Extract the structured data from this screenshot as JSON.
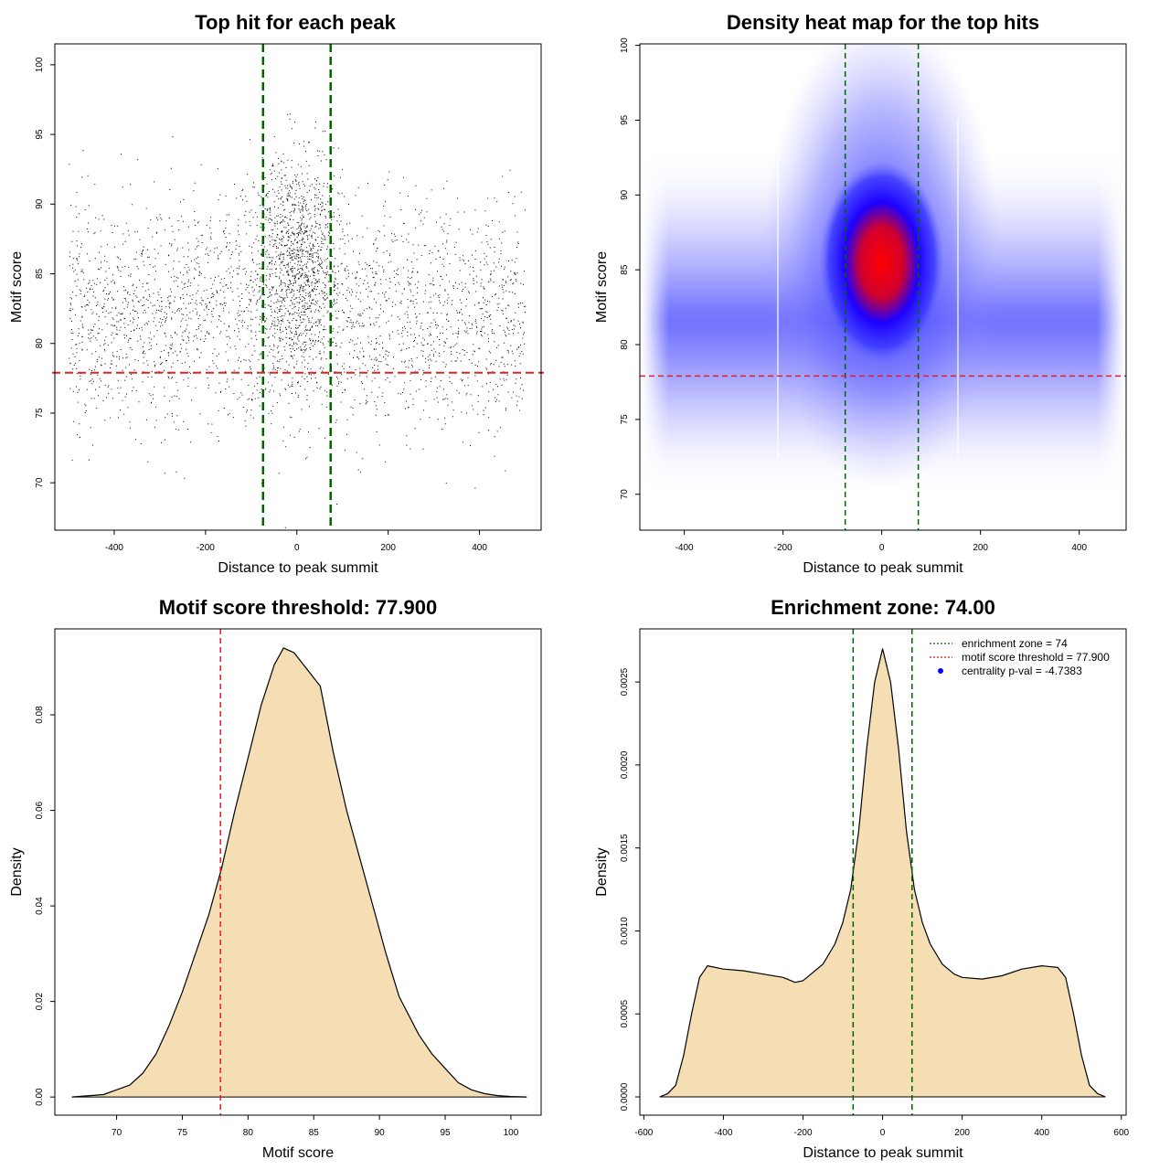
{
  "chart_data": [
    {
      "type": "scatter",
      "title": "Top hit for each peak",
      "xlabel": "Distance to peak summit",
      "ylabel": "Motif score",
      "xlim": [
        -530,
        535
      ],
      "ylim": [
        66.6,
        101.5
      ],
      "xticks": [
        -400,
        -200,
        0,
        200,
        400
      ],
      "yticks": [
        70,
        75,
        80,
        85,
        90,
        95,
        100
      ],
      "grid": false,
      "reference_lines": {
        "motif_score_threshold": 77.9,
        "enrichment_zone": [
          -74,
          74
        ]
      },
      "points_summary": {
        "n_approx": 60000,
        "x_range": [
          -500,
          500
        ],
        "background_y_mean": 82,
        "background_y_sd": 4,
        "central_y_mean": 86,
        "central_y_sd": 4,
        "central_x_sd": 45,
        "central_fraction": 0.3
      }
    },
    {
      "type": "heatmap",
      "title": "Density heat map for the top hits",
      "xlabel": "Distance to peak summit",
      "ylabel": "Motif score",
      "xlim": [
        -490,
        495
      ],
      "ylim": [
        67.6,
        100.1
      ],
      "xticks": [
        -400,
        -200,
        0,
        200,
        400
      ],
      "yticks": [
        70,
        75,
        80,
        85,
        90,
        95,
        100
      ],
      "grid": false,
      "reference_lines": {
        "motif_score_threshold": 77.9,
        "enrichment_zone": [
          -74,
          74
        ]
      },
      "peak_density": {
        "x": 0,
        "y": 85.5
      },
      "colormap": [
        "#ffffff",
        "#0000ff",
        "#ff0000"
      ]
    },
    {
      "type": "area",
      "title": "Motif score threshold: 77.900",
      "xlabel": "Motif score",
      "ylabel": "Density",
      "xlim": [
        65.3,
        102.3
      ],
      "ylim": [
        -0.0038,
        0.098
      ],
      "xticks": [
        70,
        75,
        80,
        85,
        90,
        95,
        100
      ],
      "yticks": [
        0.0,
        0.02,
        0.04,
        0.06,
        0.08
      ],
      "ytick_labels": [
        "0.00",
        "0.02",
        "0.04",
        "0.06",
        "0.08"
      ],
      "grid": false,
      "reference_lines": {
        "motif_score_threshold": 77.9
      },
      "x": [
        66.6,
        69,
        71,
        72,
        73,
        74,
        75,
        76,
        77,
        78,
        79,
        80,
        81,
        82,
        82.7,
        83.5,
        84.5,
        85.5,
        86.5,
        87.5,
        88.5,
        89.5,
        90.5,
        91.5,
        93,
        94,
        95,
        96,
        97,
        98,
        99,
        100,
        101.2
      ],
      "y": [
        0.0,
        0.0005,
        0.0025,
        0.005,
        0.009,
        0.015,
        0.022,
        0.03,
        0.038,
        0.048,
        0.06,
        0.071,
        0.082,
        0.0905,
        0.094,
        0.093,
        0.0895,
        0.086,
        0.072,
        0.06,
        0.05,
        0.04,
        0.03,
        0.021,
        0.013,
        0.009,
        0.006,
        0.003,
        0.0015,
        0.0007,
        0.0003,
        0.0001,
        0.0
      ]
    },
    {
      "type": "area",
      "title": "Enrichment zone: 74.00",
      "xlabel": "Distance to peak summit",
      "ylabel": "Density",
      "xlim": [
        -610,
        612
      ],
      "ylim": [
        -0.00011,
        0.00282
      ],
      "xticks": [
        -600,
        -400,
        -200,
        0,
        200,
        400,
        600
      ],
      "yticks": [
        0.0,
        0.0005,
        0.001,
        0.0015,
        0.002,
        0.0025
      ],
      "ytick_labels": [
        "0.0000",
        "0.0005",
        "0.0010",
        "0.0015",
        "0.0020",
        "0.0025"
      ],
      "grid": false,
      "reference_lines": {
        "enrichment_zone": [
          -74,
          74
        ]
      },
      "x": [
        -560,
        -540,
        -520,
        -500,
        -480,
        -460,
        -440,
        -400,
        -350,
        -300,
        -250,
        -220,
        -200,
        -180,
        -150,
        -120,
        -100,
        -80,
        -60,
        -40,
        -20,
        0,
        20,
        40,
        60,
        80,
        100,
        120,
        150,
        180,
        200,
        250,
        300,
        350,
        400,
        440,
        460,
        480,
        500,
        520,
        540,
        560
      ],
      "y": [
        0.0,
        2e-05,
        7e-05,
        0.00025,
        0.0005,
        0.00072,
        0.00079,
        0.00077,
        0.00076,
        0.00074,
        0.00072,
        0.00069,
        0.0007,
        0.00074,
        0.0008,
        0.00092,
        0.00105,
        0.00125,
        0.0016,
        0.0021,
        0.0025,
        0.0027,
        0.0025,
        0.0021,
        0.0016,
        0.00125,
        0.00105,
        0.00092,
        0.0008,
        0.00074,
        0.00072,
        0.00071,
        0.00073,
        0.00077,
        0.00079,
        0.00078,
        0.00072,
        0.0005,
        0.00025,
        7e-05,
        2e-05,
        0.0
      ],
      "legend": {
        "position": "top-right",
        "entries": [
          {
            "label": "enrichment zone = 74",
            "color": "#006400",
            "style": "dotted-line"
          },
          {
            "label": "motif score threshold = 77.900",
            "color": "#ff0000",
            "style": "dotted-line"
          },
          {
            "label": "centrality p-val = -4.7383",
            "color": "#0000ff",
            "style": "point"
          }
        ]
      }
    }
  ]
}
